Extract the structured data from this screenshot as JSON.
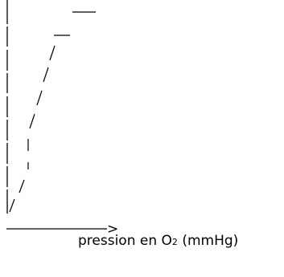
{
  "chart_data": {
    "type": "line",
    "title": "",
    "ylabel": "",
    "xlabel": {
      "main": "pression en O",
      "subscript": "2",
      "unit": "(mmHg)"
    },
    "axis_arrow_glyph": ">",
    "curve_shape": "sigmoid-plateau",
    "grid": false,
    "legend": "none",
    "color": "#000000"
  }
}
